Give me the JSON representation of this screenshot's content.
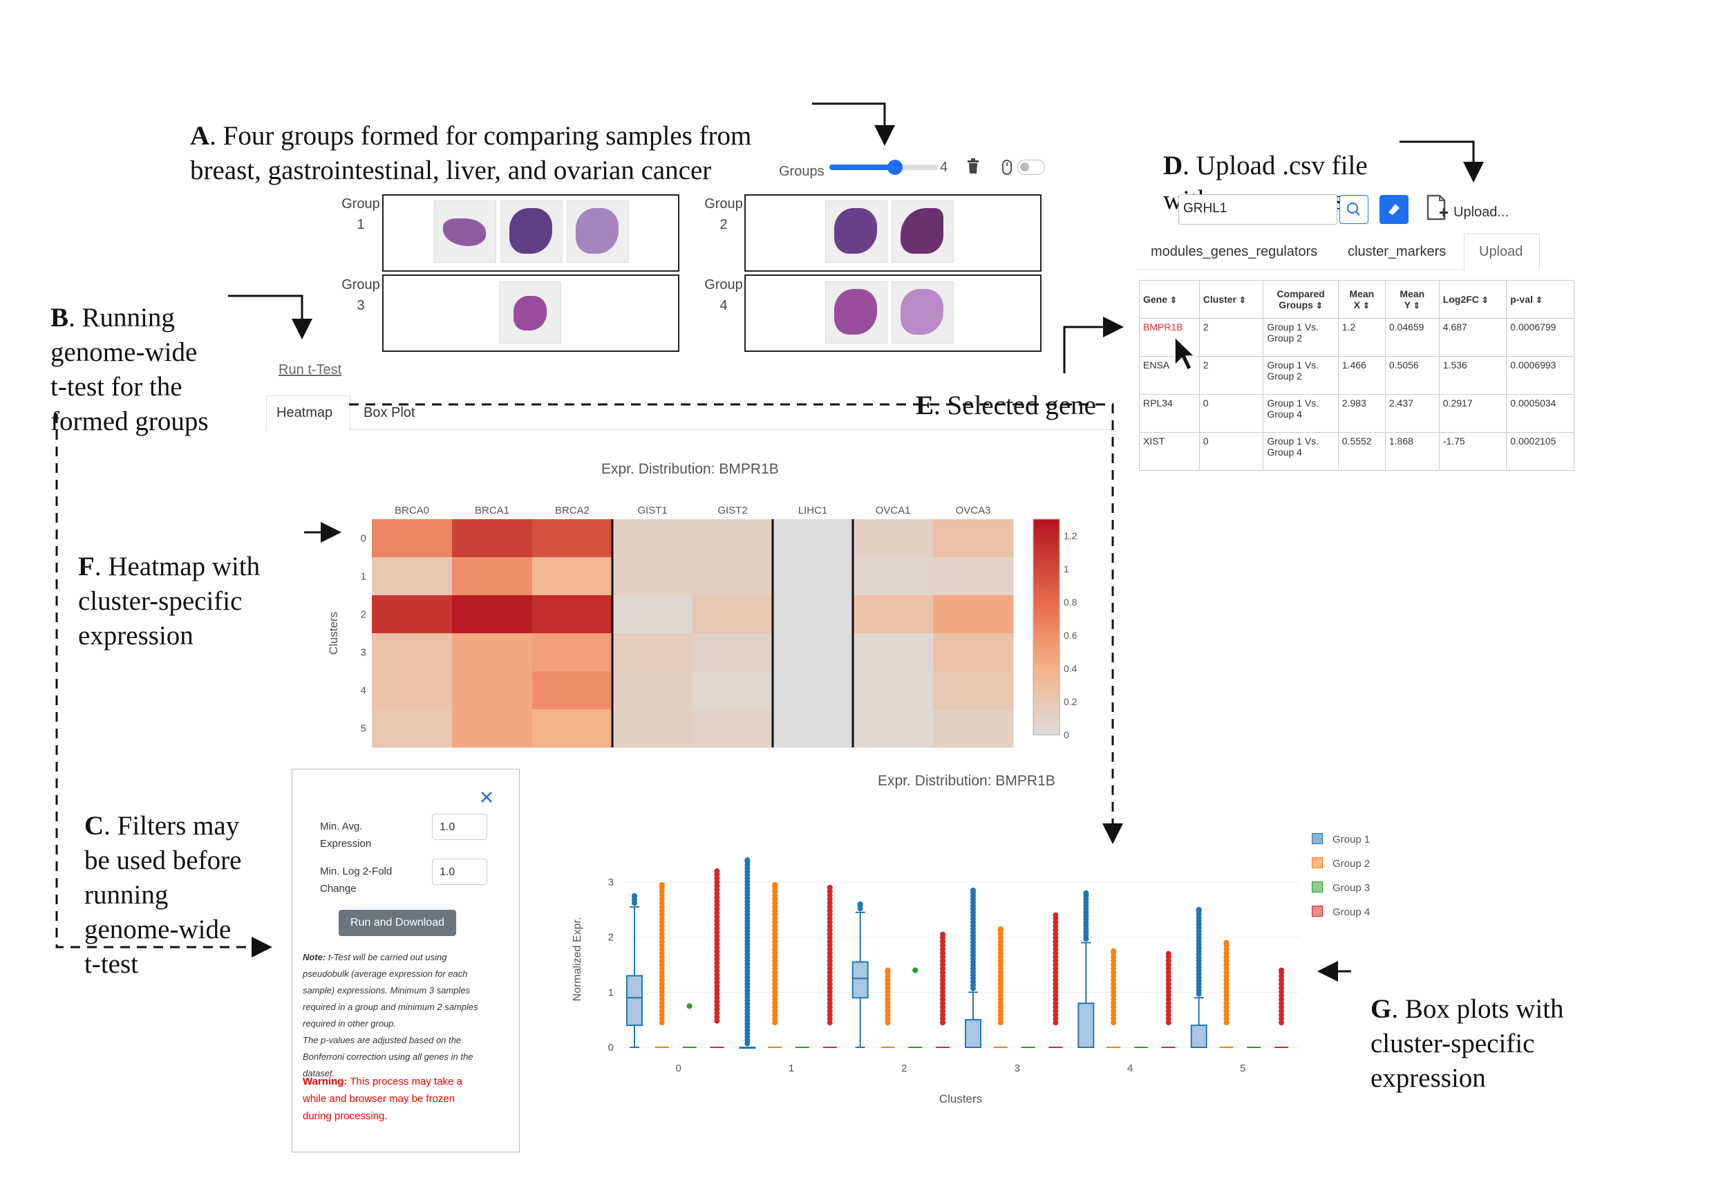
{
  "annotations": {
    "a": {
      "letter": "A",
      "text": ". Four groups formed for comparing samples from\nbreast, gastrointestinal, liver, and ovarian cancer"
    },
    "b": {
      "letter": "B",
      "text": ". Running\ngenome-wide\nt-test for the\nformed groups"
    },
    "c": {
      "letter": "C",
      "text": ". Filters may\nbe used before\nrunning\ngenome-wide\nt-test"
    },
    "d": {
      "letter": "D",
      "text": ". Upload .csv file\nwith gene names"
    },
    "e": {
      "letter": "E",
      "text": ". Selected gene"
    },
    "f": {
      "letter": "F",
      "text": ". Heatmap with\ncluster-specific\nexpression"
    },
    "g": {
      "letter": "G",
      "text": ". Box plots with\ncluster-specific\nexpression"
    }
  },
  "groups_control": {
    "label": "Groups",
    "value": "4",
    "slider_fraction": 0.6
  },
  "groups": [
    {
      "label": "Group\n1",
      "thumbs": 3
    },
    {
      "label": "Group\n2",
      "thumbs": 2
    },
    {
      "label": "Group\n3",
      "thumbs": 1
    },
    {
      "label": "Group\n4",
      "thumbs": 2
    }
  ],
  "run_ttest_link": "Run t-Test",
  "view_tabs": [
    "Heatmap",
    "Box Plot"
  ],
  "search": {
    "value": "GRHL1",
    "upload_label": "Upload..."
  },
  "gene_tabs": [
    "modules_genes_regulators",
    "cluster_markers",
    "Upload"
  ],
  "gene_table": {
    "headers": [
      "Gene",
      "Cluster",
      "Compared\nGroups",
      "Mean\nX",
      "Mean\nY",
      "Log2FC",
      "p-val"
    ],
    "rows": [
      [
        "BMPR1B",
        "2",
        "Group 1 Vs.\nGroup 2",
        "1.2",
        "0.04659",
        "4.687",
        "0.0006799"
      ],
      [
        "ENSA",
        "2",
        "Group 1 Vs.\nGroup 2",
        "1.466",
        "0.5056",
        "1.536",
        "0.0006993"
      ],
      [
        "RPL34",
        "0",
        "Group 1 Vs.\nGroup 4",
        "2.983",
        "2.437",
        "0.2917",
        "0.0005034"
      ],
      [
        "XIST",
        "0",
        "Group 1 Vs.\nGroup 4",
        "0.5552",
        "1.868",
        "-1.75",
        "0.0002105"
      ]
    ],
    "selected_color": "#e8302a"
  },
  "filters": {
    "min_avg_label": "Min. Avg.\nExpression",
    "min_avg_value": "1.0",
    "min_log_label": "Min. Log 2-Fold\nChange",
    "min_log_value": "1.0",
    "run_button": "Run and Download",
    "note_label": "Note:",
    "note_text": " t-Test will be carried out using\npseudobulk (average expression for each\nsample) expressions. Minimum 3 samples\nrequired in a group and minimum 2 samples\nrequired in other group.\nThe p-values are adjusted based on the\nBonferroni correction using all genes in the\ndataset.",
    "warning_label": "Warning:",
    "warning_text": " This process may take a\nwhile and browser may be frozen\nduring processing."
  },
  "chart_data": [
    {
      "type": "heatmap",
      "title": "Expr. Distribution: BMPR1B",
      "ylabel": "Clusters",
      "columns": [
        "BRCA0",
        "BRCA1",
        "BRCA2",
        "GIST1",
        "GIST2",
        "LIHC1",
        "OVCA1",
        "OVCA3"
      ],
      "rows": [
        "0",
        "1",
        "2",
        "3",
        "4",
        "5"
      ],
      "values": [
        [
          0.65,
          1.05,
          0.95,
          0.12,
          0.12,
          null,
          0.12,
          0.25
        ],
        [
          0.2,
          0.6,
          0.35,
          0.12,
          0.12,
          null,
          0.08,
          0.1
        ],
        [
          1.1,
          1.25,
          1.15,
          0.05,
          0.2,
          null,
          0.25,
          0.45
        ],
        [
          0.25,
          0.45,
          0.5,
          0.15,
          0.1,
          null,
          0.05,
          0.25
        ],
        [
          0.25,
          0.45,
          0.6,
          0.12,
          0.05,
          null,
          0.05,
          0.2
        ],
        [
          0.2,
          0.45,
          0.4,
          0.12,
          0.1,
          null,
          0.05,
          0.12
        ]
      ],
      "colorbar_ticks": [
        "0",
        "0.2",
        "0.4",
        "0.6",
        "0.8",
        "1",
        "1.2"
      ],
      "zmin": 0,
      "zmax": 1.3
    },
    {
      "type": "box",
      "title": "Expr. Distribution: BMPR1B",
      "xlabel": "Clusters",
      "ylabel": "Normalized Expr.",
      "categories": [
        "0",
        "1",
        "2",
        "3",
        "4",
        "5"
      ],
      "ylim": [
        0,
        3.2
      ],
      "yticks": [
        "0",
        "1",
        "2",
        "3"
      ],
      "series": [
        {
          "name": "Group 1",
          "color": "#1f77b4",
          "boxes": [
            {
              "q1": 0.4,
              "median": 0.9,
              "q3": 1.3,
              "lo": 0,
              "hi": 2.55,
              "max": 2.75
            },
            {
              "q1": 0.0,
              "median": 0.0,
              "q3": 0.0,
              "lo": 0,
              "hi": 0,
              "max": 3.4
            },
            {
              "q1": 0.9,
              "median": 1.25,
              "q3": 1.55,
              "lo": 0,
              "hi": 2.45,
              "max": 2.6
            },
            {
              "q1": 0.0,
              "median": 0.0,
              "q3": 0.5,
              "lo": 0,
              "hi": 1.0,
              "max": 2.85
            },
            {
              "q1": 0.0,
              "median": 0.0,
              "q3": 0.8,
              "lo": 0,
              "hi": 1.9,
              "max": 2.8
            },
            {
              "q1": 0.0,
              "median": 0.0,
              "q3": 0.4,
              "lo": 0,
              "hi": 0.9,
              "max": 2.5
            }
          ]
        },
        {
          "name": "Group 2",
          "color": "#ff7f0e",
          "points_max": [
            2.95,
            2.95,
            1.4,
            2.15,
            1.75,
            1.9
          ]
        },
        {
          "name": "Group 3",
          "color": "#2ca02c",
          "points_max": [
            0.75,
            0,
            1.4,
            0,
            0,
            0
          ]
        },
        {
          "name": "Group 4",
          "color": "#d62728",
          "points_max": [
            3.2,
            2.9,
            2.05,
            2.4,
            1.7,
            1.4
          ]
        }
      ]
    }
  ]
}
